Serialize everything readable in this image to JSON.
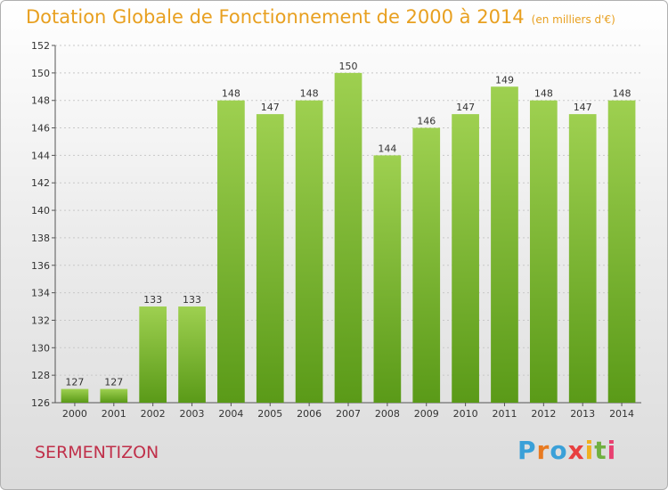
{
  "title": "Dotation Globale de Fonctionnement de 2000 à 2014",
  "unit": "(en milliers d'€)",
  "commune": "SERMENTIZON",
  "logo": {
    "text": "Proxiti"
  },
  "colors": {
    "title": "#e8a020",
    "bar_top": "#9ed050",
    "bar_bottom": "#5a9a18",
    "commune": "#c0304a"
  },
  "chart_data": {
    "type": "bar",
    "title": "Dotation Globale de Fonctionnement de 2000 à 2014",
    "xlabel": "",
    "ylabel": "",
    "categories": [
      "2000",
      "2001",
      "2002",
      "2003",
      "2004",
      "2005",
      "2006",
      "2007",
      "2008",
      "2009",
      "2010",
      "2011",
      "2012",
      "2013",
      "2014"
    ],
    "values": [
      127,
      127,
      133,
      133,
      148,
      147,
      148,
      150,
      144,
      146,
      147,
      149,
      148,
      147,
      148
    ],
    "ylim": [
      126,
      152
    ],
    "yticks": [
      126,
      128,
      130,
      132,
      134,
      136,
      138,
      140,
      142,
      144,
      146,
      148,
      150,
      152
    ],
    "grid": true,
    "legend": "none"
  }
}
